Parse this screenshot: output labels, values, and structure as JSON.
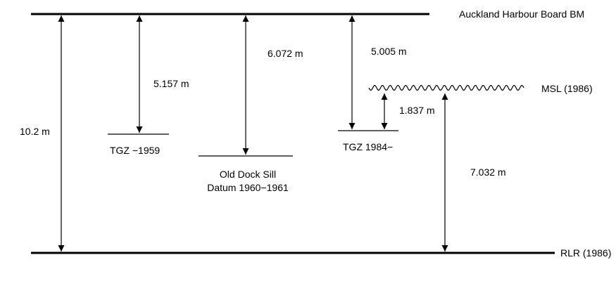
{
  "datums": {
    "bench_mark": "Auckland Harbour Board BM",
    "msl": "MSL (1986)",
    "rlr": "RLR (1986)",
    "tgz_1959": "TGZ −1959",
    "old_dock_sill_line1": "Old Dock Sill",
    "old_dock_sill_line2": "Datum 1960−1961",
    "tgz_1984": "TGZ 1984−"
  },
  "measurements": {
    "bm_to_rlr": "10.2 m",
    "bm_to_tgz_1959": "5.157 m",
    "bm_to_old_dock_sill": "6.072 m",
    "bm_to_tgz_1984": "5.005 m",
    "tgz_1984_to_msl": "1.837 m",
    "rlr_to_msl": "7.032 m"
  },
  "colors": {
    "line": "#000000",
    "background": "#ffffff"
  }
}
